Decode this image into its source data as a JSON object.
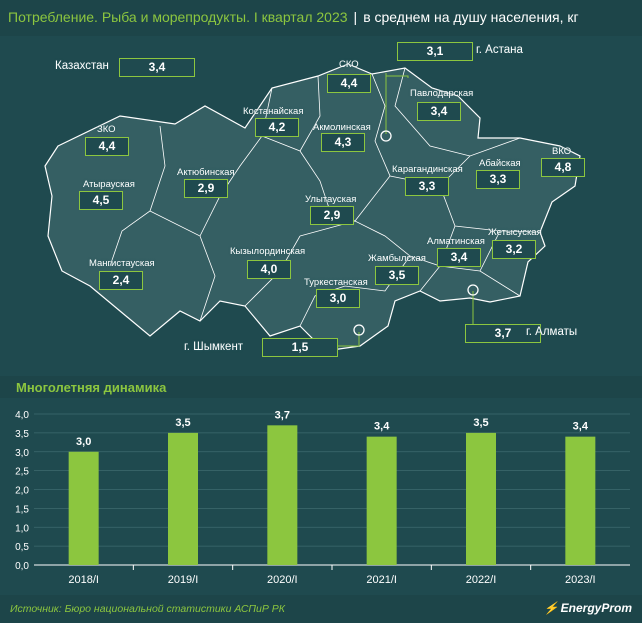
{
  "header": {
    "title": "Потребление. Рыба и морепродукты. I квартал 2023",
    "separator": "|",
    "subtitle": "в среднем на душу населения, кг"
  },
  "map": {
    "total": {
      "label": "Казахстан",
      "value": "3,4"
    },
    "regions": [
      {
        "name": "СКО",
        "value": "4,4"
      },
      {
        "name": "Павлодарская",
        "value": "3,4"
      },
      {
        "name": "Костанайская",
        "value": "4,2"
      },
      {
        "name": "Акмолинская",
        "value": "4,3"
      },
      {
        "name": "ЗКО",
        "value": "4,4"
      },
      {
        "name": "Атырауская",
        "value": "4,5"
      },
      {
        "name": "Актюбинская",
        "value": "2,9"
      },
      {
        "name": "Улытауская",
        "value": "2,9"
      },
      {
        "name": "Карагандинская",
        "value": "3,3"
      },
      {
        "name": "Абайская",
        "value": "3,3"
      },
      {
        "name": "ВКО",
        "value": "4,8"
      },
      {
        "name": "Мангистауская",
        "value": "2,4"
      },
      {
        "name": "Кызылординская",
        "value": "4,0"
      },
      {
        "name": "Жамбылская",
        "value": "3,5"
      },
      {
        "name": "Алматинская",
        "value": "3,4"
      },
      {
        "name": "Жетысуская",
        "value": "3,2"
      },
      {
        "name": "Туркестанская",
        "value": "3,0"
      }
    ],
    "cities": [
      {
        "name": "г. Астана",
        "value": "3,1"
      },
      {
        "name": "г. Алматы",
        "value": "3,7"
      },
      {
        "name": "г. Шымкент",
        "value": "1,5"
      }
    ]
  },
  "section": {
    "title": "Многолетняя динамика"
  },
  "chart_data": {
    "type": "bar",
    "title": "Многолетняя динамика",
    "categories": [
      "2018/I",
      "2019/I",
      "2020/I",
      "2021/I",
      "2022/I",
      "2023/I"
    ],
    "values": [
      3.0,
      3.5,
      3.7,
      3.4,
      3.5,
      3.4
    ],
    "value_labels": [
      "3,0",
      "3,5",
      "3,7",
      "3,4",
      "3,5",
      "3,4"
    ],
    "yticks": [
      "0,0",
      "0,5",
      "1,0",
      "1,5",
      "2,0",
      "2,5",
      "3,0",
      "3,5",
      "4,0"
    ],
    "ylim": [
      0,
      4
    ],
    "grid": true,
    "bar_color": "#8cc63f"
  },
  "footer": {
    "source": "Источник: Бюро национальной статистики АСПиР РК",
    "logo": "EnergyProm"
  },
  "colors": {
    "background": "#1f4a4f",
    "map_fill": "#355f63",
    "accent": "#8cc63f"
  }
}
